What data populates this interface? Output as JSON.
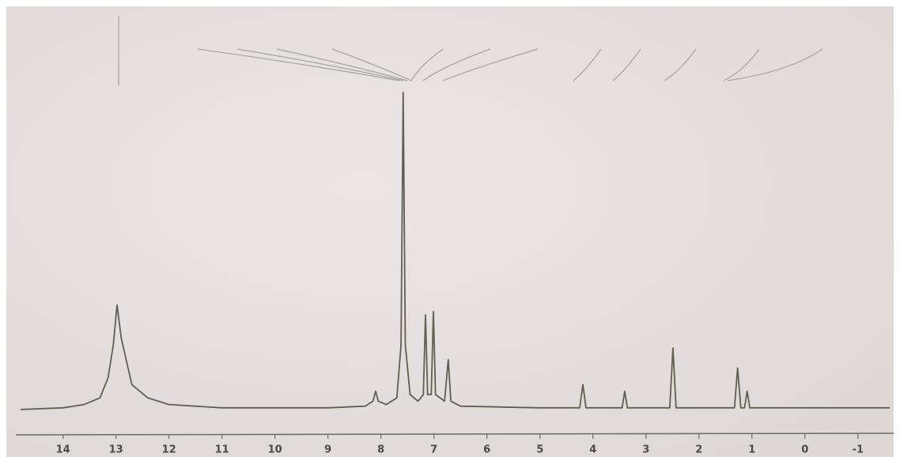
{
  "chart_data": {
    "type": "line",
    "x": [
      14.8,
      14.0,
      13.6,
      13.3,
      13.15,
      13.05,
      12.98,
      12.9,
      12.7,
      12.4,
      12.0,
      11.0,
      10.0,
      9.0,
      8.3,
      8.15,
      8.1,
      8.05,
      7.9,
      7.7,
      7.62,
      7.58,
      7.54,
      7.45,
      7.3,
      7.2,
      7.16,
      7.12,
      7.05,
      7.01,
      6.97,
      6.8,
      6.73,
      6.68,
      6.5,
      5.0,
      4.25,
      4.19,
      4.13,
      3.45,
      3.4,
      3.35,
      2.55,
      2.49,
      2.43,
      1.33,
      1.27,
      1.21,
      1.14,
      1.09,
      1.04,
      0.0,
      -1.6
    ],
    "values": [
      0.5,
      1,
      2,
      4,
      10,
      20,
      32,
      22,
      8,
      4,
      2,
      1,
      1,
      1,
      1.5,
      3,
      6,
      3,
      2,
      4,
      20,
      96,
      20,
      5,
      3,
      5,
      29,
      5,
      5,
      30,
      5,
      3,
      15.5,
      3,
      1.5,
      1,
      1,
      8,
      1,
      1,
      6,
      1,
      1,
      19,
      1,
      1,
      13,
      1,
      1,
      6,
      1,
      1,
      1
    ],
    "color": "#5f5f52",
    "xlim": [
      14.8,
      -1.6
    ],
    "xticks": [
      14,
      13,
      12,
      11,
      10,
      9,
      8,
      7,
      6,
      5,
      4,
      3,
      2,
      1,
      0,
      -1
    ],
    "ylim": [
      0,
      100
    ]
  }
}
